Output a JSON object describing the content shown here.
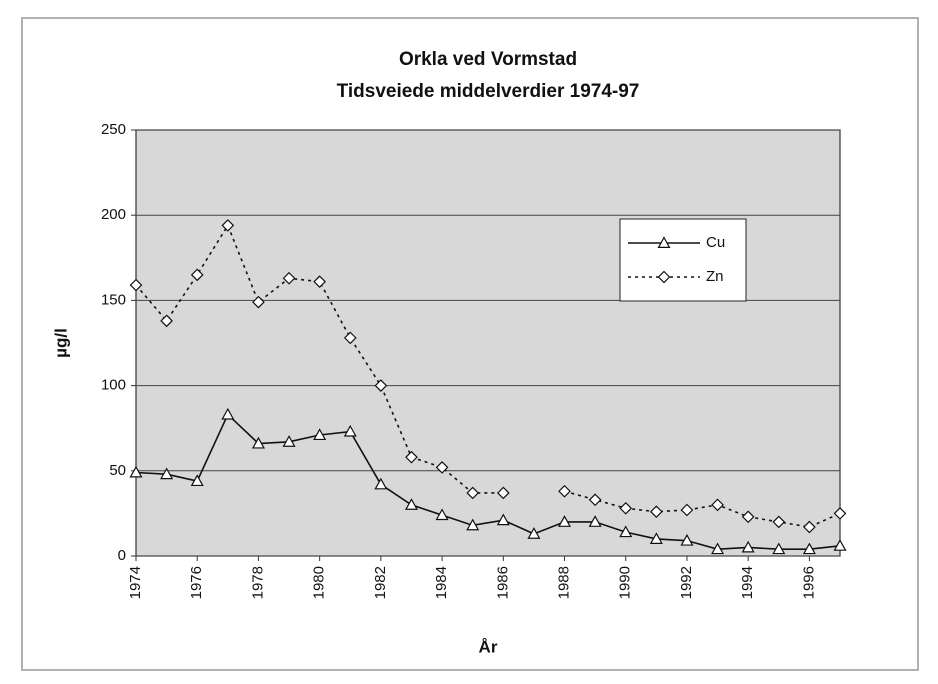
{
  "chart_data": {
    "type": "line",
    "title": "Orkla ved Vormstad",
    "subtitle": "Tidsveiede middelverdier 1974-97",
    "x_label": "År",
    "y_label": "µg/l",
    "x": [
      1974,
      1975,
      1976,
      1977,
      1978,
      1979,
      1980,
      1981,
      1982,
      1983,
      1984,
      1985,
      1986,
      1987,
      1988,
      1989,
      1990,
      1991,
      1992,
      1993,
      1994,
      1995,
      1996,
      1997
    ],
    "series": [
      {
        "name": "Cu",
        "color": "#111111",
        "line_style": "solid",
        "marker": "triangle",
        "values": [
          49,
          48,
          44,
          83,
          66,
          67,
          71,
          73,
          42,
          30,
          24,
          18,
          21,
          13,
          20,
          20,
          14,
          10,
          9,
          4,
          5,
          4,
          4,
          6
        ]
      },
      {
        "name": "Zn",
        "color": "#111111",
        "line_style": "dotted",
        "marker": "diamond",
        "values": [
          159,
          138,
          165,
          194,
          149,
          163,
          161,
          128,
          100,
          58,
          52,
          37,
          37,
          null,
          38,
          33,
          28,
          26,
          27,
          30,
          23,
          20,
          17,
          25
        ]
      }
    ],
    "xlim": [
      1974,
      1997
    ],
    "xticks": [
      1974,
      1976,
      1978,
      1980,
      1982,
      1984,
      1986,
      1988,
      1990,
      1992,
      1994,
      1996
    ],
    "ylim": [
      0,
      250
    ],
    "yticks": [
      0,
      50,
      100,
      150,
      200,
      250
    ],
    "grid": true,
    "legend_position": "upper right"
  }
}
